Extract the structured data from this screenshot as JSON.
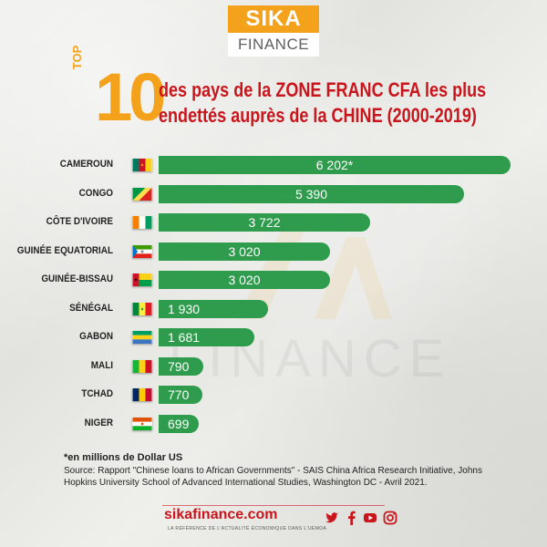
{
  "logo": {
    "line1": "SIKA",
    "line2": "FINANCE"
  },
  "title": {
    "badge_small": "TOP",
    "badge_number": "10",
    "line1": "des pays de la ZONE FRANC CFA les plus",
    "line2": "endettés auprès de la CHINE (2000-2019)"
  },
  "colors": {
    "bar": "#2f9c4d",
    "title_red": "#c9151c",
    "accent_orange": "#f4a21c"
  },
  "chart_data": {
    "type": "bar",
    "orientation": "horizontal",
    "categories": [
      "CAMEROUN",
      "CONGO",
      "CÔTE D'IVOIRE",
      "GUINÉE EQUATORIAL",
      "GUINÉE-BISSAU",
      "SÉNÉGAL",
      "GABON",
      "MALI",
      "TCHAD",
      "NIGER"
    ],
    "values": [
      6202,
      5390,
      3722,
      3020,
      3020,
      1930,
      1681,
      790,
      770,
      699
    ],
    "value_labels": [
      "6 202*",
      "5 390",
      "3 722",
      "3 020",
      "3 020",
      "1 930",
      "1 681",
      "790",
      "770",
      "699"
    ],
    "flags": [
      "cameroon-flag",
      "congo-flag",
      "cote-divoire-flag",
      "equatorial-guinea-flag",
      "guinea-bissau-flag",
      "senegal-flag",
      "gabon-flag",
      "mali-flag",
      "chad-flag",
      "niger-flag"
    ]
  },
  "footnote": "*en millions de Dollar US",
  "source": "Source: Rapport \"Chinese loans to African Governments\" - SAIS China Africa Research Initiative, Johns Hopkins University School of Advanced International Studies, Washington DC - Avril 2021.",
  "footer": {
    "site": "sikafinance.com",
    "tagline": "LA RÉFÉRENCE DE L'ACTUALITÉ ÉCONOMIQUE DANS L'UEMOA",
    "social_icons": [
      "twitter-icon",
      "facebook-icon",
      "youtube-icon",
      "instagram-icon"
    ]
  }
}
